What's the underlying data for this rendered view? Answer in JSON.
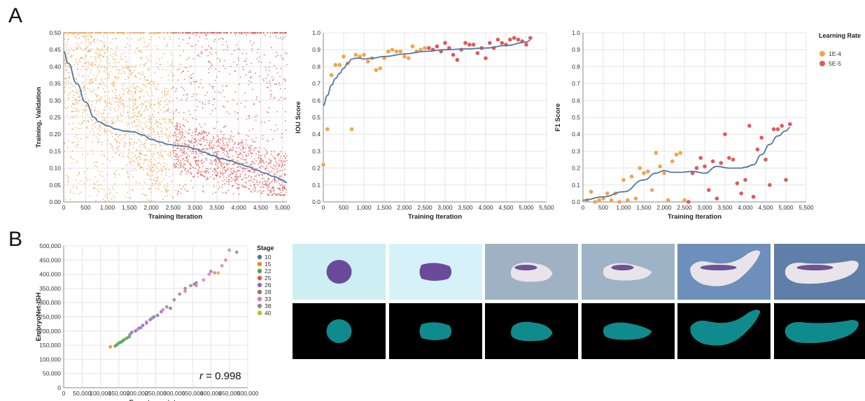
{
  "panel_labels": {
    "a": "A",
    "b": "B"
  },
  "colors": {
    "lr_1e4": "#f4a349",
    "lr_5e5": "#e45756",
    "smooth": "#4c78a8",
    "mask": "#0f8b8d",
    "stage": {
      "10": "#4c78a8",
      "15": "#f58518",
      "22": "#54a24b",
      "25": "#e45756",
      "26": "#8e6bbf",
      "28": "#9d755d",
      "33": "#e377c2",
      "38": "#8c8c8c",
      "40": "#bcbd22"
    }
  },
  "chart_data": [
    {
      "type": "scatter",
      "title": "",
      "xlabel": "Training Iteration",
      "ylabel": "Training, Validation",
      "xlim": [
        0,
        5100
      ],
      "ylim": [
        0,
        0.5
      ],
      "x_ticks": [
        0,
        500,
        1000,
        1500,
        2000,
        2500,
        3000,
        3500,
        4000,
        4500,
        5000
      ],
      "x_tick_labels": [
        "0",
        "500",
        "1,000",
        "1,500",
        "2,000",
        "2,500",
        "3,000",
        "3,500",
        "4,000",
        "4,500",
        "5,000"
      ],
      "y_ticks": [
        0,
        0.05,
        0.1,
        0.15,
        0.2,
        0.25,
        0.3,
        0.35,
        0.4,
        0.45,
        0.5
      ],
      "y_tick_labels": [
        "0.00",
        "0.05",
        "0.10",
        "0.15",
        "0.20",
        "0.25",
        "0.30",
        "0.35",
        "0.40",
        "0.45",
        "0.50"
      ],
      "grid": true,
      "series": [
        {
          "learning_rate": "1E-4",
          "x_range": [
            0,
            2500
          ],
          "y_range": [
            0.0,
            0.5
          ],
          "approx_points": 2600
        },
        {
          "learning_rate": "5E-5",
          "x_range": [
            2500,
            5100
          ],
          "y_range": [
            0.02,
            0.5
          ],
          "approx_points": 2600
        }
      ],
      "trend": {
        "x": [
          0,
          100,
          300,
          500,
          700,
          800,
          1000,
          1200,
          1400,
          1600,
          1800,
          2000,
          2200,
          2400,
          2600,
          2800,
          3000,
          3200,
          3400,
          3600,
          3800,
          4000,
          4200,
          4400,
          4600,
          4800,
          5000,
          5100
        ],
        "y": [
          0.445,
          0.41,
          0.35,
          0.295,
          0.25,
          0.237,
          0.225,
          0.215,
          0.209,
          0.207,
          0.198,
          0.185,
          0.177,
          0.17,
          0.166,
          0.164,
          0.157,
          0.147,
          0.137,
          0.128,
          0.122,
          0.113,
          0.105,
          0.094,
          0.085,
          0.075,
          0.064,
          0.057
        ]
      }
    },
    {
      "type": "scatter",
      "title": "",
      "xlabel": "Training Iteration",
      "ylabel": "IOU Score",
      "xlim": [
        0,
        5500
      ],
      "ylim": [
        0,
        1.0
      ],
      "x_ticks": [
        0,
        500,
        1000,
        1500,
        2000,
        2500,
        3000,
        3500,
        4000,
        4500,
        5000,
        5500
      ],
      "x_tick_labels": [
        "0",
        "500",
        "1,000",
        "1,500",
        "2,000",
        "2,500",
        "3,000",
        "3,500",
        "4,000",
        "4,500",
        "5,000",
        "5,500"
      ],
      "y_ticks": [
        0,
        0.1,
        0.2,
        0.3,
        0.4,
        0.5,
        0.6,
        0.7,
        0.8,
        0.9,
        1.0
      ],
      "y_tick_labels": [
        "0.0",
        "0.1",
        "0.2",
        "0.3",
        "0.4",
        "0.5",
        "0.6",
        "0.7",
        "0.8",
        "0.9",
        "1.0"
      ],
      "grid": true,
      "series": [
        {
          "learning_rate": "1E-4",
          "x": [
            0,
            100,
            200,
            300,
            400,
            500,
            600,
            700,
            800,
            900,
            1000,
            1100,
            1200,
            1300,
            1400,
            1500,
            1600,
            1700,
            1800,
            1900,
            2000,
            2100,
            2200,
            2300,
            2400,
            2500
          ],
          "y": [
            0.22,
            0.43,
            0.75,
            0.81,
            0.81,
            0.86,
            0.82,
            0.43,
            0.87,
            0.86,
            0.87,
            0.83,
            0.85,
            0.78,
            0.79,
            0.85,
            0.89,
            0.9,
            0.89,
            0.89,
            0.86,
            0.85,
            0.92,
            0.89,
            0.9,
            0.91
          ]
        },
        {
          "learning_rate": "5E-5",
          "x": [
            2600,
            2700,
            2800,
            2900,
            3000,
            3100,
            3200,
            3300,
            3400,
            3500,
            3600,
            3700,
            3800,
            3900,
            4000,
            4100,
            4200,
            4300,
            4400,
            4500,
            4600,
            4700,
            4800,
            4900,
            5000,
            5100
          ],
          "y": [
            0.91,
            0.9,
            0.92,
            0.89,
            0.94,
            0.91,
            0.87,
            0.84,
            0.9,
            0.94,
            0.93,
            0.93,
            0.88,
            0.91,
            0.85,
            0.94,
            0.91,
            0.96,
            0.94,
            0.93,
            0.96,
            0.97,
            0.96,
            0.95,
            0.93,
            0.97
          ]
        }
      ],
      "trend": {
        "x": [
          0,
          100,
          200,
          300,
          400,
          500,
          600,
          700,
          800,
          900,
          1000,
          1200,
          1500,
          2000,
          2500,
          3000,
          3500,
          4000,
          4500,
          5000,
          5100
        ],
        "y": [
          0.57,
          0.63,
          0.69,
          0.73,
          0.76,
          0.79,
          0.82,
          0.845,
          0.85,
          0.85,
          0.845,
          0.85,
          0.86,
          0.875,
          0.89,
          0.9,
          0.905,
          0.91,
          0.925,
          0.945,
          0.955
        ]
      }
    },
    {
      "type": "scatter",
      "title": "",
      "xlabel": "Training Iteration",
      "ylabel": "F1 Score",
      "xlim": [
        0,
        5500
      ],
      "ylim": [
        0,
        1.0
      ],
      "x_ticks": [
        0,
        500,
        1000,
        1500,
        2000,
        2500,
        3000,
        3500,
        4000,
        4500,
        5000,
        5500
      ],
      "x_tick_labels": [
        "0",
        "500",
        "1,000",
        "1,500",
        "2,000",
        "2,500",
        "3,000",
        "3,500",
        "4,000",
        "4,500",
        "5,000",
        "5,500"
      ],
      "y_ticks": [
        0,
        0.1,
        0.2,
        0.3,
        0.4,
        0.5,
        0.6,
        0.7,
        0.8,
        0.9,
        1.0
      ],
      "y_tick_labels": [
        "0.0",
        "0.1",
        "0.2",
        "0.3",
        "0.4",
        "0.5",
        "0.6",
        "0.7",
        "0.8",
        "0.9",
        "1.0"
      ],
      "grid": true,
      "series": [
        {
          "learning_rate": "1E-4",
          "x": [
            100,
            200,
            300,
            400,
            500,
            600,
            700,
            800,
            900,
            1000,
            1100,
            1200,
            1300,
            1400,
            1500,
            1600,
            1700,
            1800,
            1900,
            2000,
            2100,
            2200,
            2300,
            2400,
            2500
          ],
          "y": [
            0.01,
            0.06,
            0.0,
            0.01,
            0.02,
            0.05,
            0.01,
            0.05,
            0.0,
            0.13,
            0.01,
            0.15,
            0.02,
            0.2,
            0.17,
            0.18,
            0.07,
            0.29,
            0.21,
            0.17,
            0.01,
            0.24,
            0.28,
            0.29,
            0.01
          ]
        },
        {
          "learning_rate": "5E-5",
          "x": [
            2600,
            2700,
            2800,
            2900,
            3000,
            3100,
            3200,
            3300,
            3400,
            3500,
            3600,
            3700,
            3800,
            3900,
            4000,
            4100,
            4200,
            4300,
            4400,
            4500,
            4600,
            4700,
            4800,
            4900,
            5000,
            5100
          ],
          "y": [
            0.0,
            0.17,
            0.2,
            0.26,
            0.21,
            0.07,
            0.24,
            0.02,
            0.23,
            0.4,
            0.26,
            0.25,
            0.11,
            0.05,
            0.13,
            0.45,
            0.03,
            0.31,
            0.38,
            0.25,
            0.1,
            0.43,
            0.43,
            0.45,
            0.13,
            0.46
          ]
        }
      ],
      "trend": {
        "x": [
          0,
          500,
          1000,
          1500,
          1800,
          2000,
          2200,
          2400,
          2700,
          3000,
          3300,
          3600,
          3900,
          4000,
          4200,
          4400,
          4600,
          4800,
          5000,
          5100
        ],
        "y": [
          0.01,
          0.03,
          0.06,
          0.13,
          0.17,
          0.185,
          0.175,
          0.175,
          0.18,
          0.17,
          0.21,
          0.2,
          0.2,
          0.205,
          0.22,
          0.28,
          0.34,
          0.39,
          0.42,
          0.44
        ]
      }
    },
    {
      "type": "scatter",
      "title": "",
      "xlabel": "Expert annotator",
      "ylabel": "EmbryoNet-ISH",
      "xlim": [
        0,
        500000
      ],
      "ylim": [
        0,
        500000
      ],
      "x_ticks": [
        0,
        50000,
        100000,
        150000,
        200000,
        250000,
        300000,
        350000,
        400000,
        450000,
        500000
      ],
      "x_tick_labels": [
        "0",
        "50,000",
        "100,000",
        "150,000",
        "200,000",
        "250,000",
        "300,000",
        "350,000",
        "400,000",
        "450,000",
        "500,000"
      ],
      "y_ticks": [
        0,
        50000,
        100000,
        150000,
        200000,
        250000,
        300000,
        350000,
        400000,
        450000,
        500000
      ],
      "y_tick_labels": [
        "0",
        "50,000",
        "100,000",
        "150,000",
        "200,000",
        "250,000",
        "300,000",
        "350,000",
        "400,000",
        "450,000",
        "500,000"
      ],
      "grid": true,
      "annotation": {
        "prefix": "r",
        "text": " = 0.998"
      },
      "legend_title": "Stage",
      "series": [
        {
          "name": "10",
          "x": [],
          "y": []
        },
        {
          "name": "15",
          "x": [
            127000
          ],
          "y": [
            144000
          ]
        },
        {
          "name": "22",
          "x": [
            140000,
            145000,
            150000,
            155000,
            160000,
            165000,
            172000,
            178000
          ],
          "y": [
            147000,
            152000,
            158000,
            160000,
            165000,
            170000,
            175000,
            180000
          ]
        },
        {
          "name": "25",
          "x": [],
          "y": []
        },
        {
          "name": "26",
          "x": [
            185000,
            195000,
            205000,
            215000,
            225000,
            235000,
            245000,
            255000,
            265000,
            290000
          ],
          "y": [
            195000,
            200000,
            210000,
            220000,
            228000,
            240000,
            250000,
            255000,
            268000,
            280000
          ]
        },
        {
          "name": "28",
          "x": [],
          "y": []
        },
        {
          "name": "33",
          "x": [
            200000,
            225000,
            270000,
            330000,
            360000,
            380000,
            395000,
            410000,
            430000,
            440000,
            450000
          ],
          "y": [
            205000,
            232000,
            275000,
            340000,
            360000,
            380000,
            400000,
            405000,
            430000,
            450000,
            485000
          ]
        },
        {
          "name": "38",
          "x": [
            180000,
            210000,
            240000,
            280000,
            300000,
            315000,
            330000,
            345000,
            355000,
            360000,
            400000,
            470000
          ],
          "y": [
            188000,
            212000,
            245000,
            285000,
            310000,
            330000,
            350000,
            360000,
            365000,
            370000,
            410000,
            478000
          ]
        },
        {
          "name": "40",
          "x": [
            420000
          ],
          "y": [
            405000
          ]
        }
      ]
    }
  ],
  "legend_a": {
    "title": "Learning Rate",
    "items": [
      {
        "label": "1E-4"
      },
      {
        "label": "5E-5"
      }
    ]
  },
  "embryo_panels": {
    "photo_row": [
      {
        "id": "embryo-1",
        "bg": "#cdeff4",
        "shape": "round"
      },
      {
        "id": "embryo-2",
        "bg": "#d6f2f8",
        "shape": "oval"
      },
      {
        "id": "embryo-3",
        "bg": "#9fb2c4",
        "shape": "bean"
      },
      {
        "id": "embryo-4",
        "bg": "#9eb3c6",
        "shape": "tailbud"
      },
      {
        "id": "embryo-5",
        "bg": "#6e8fbc",
        "shape": "tadpole-curved"
      },
      {
        "id": "embryo-6",
        "bg": "#5f7ea8",
        "shape": "tadpole"
      }
    ]
  }
}
